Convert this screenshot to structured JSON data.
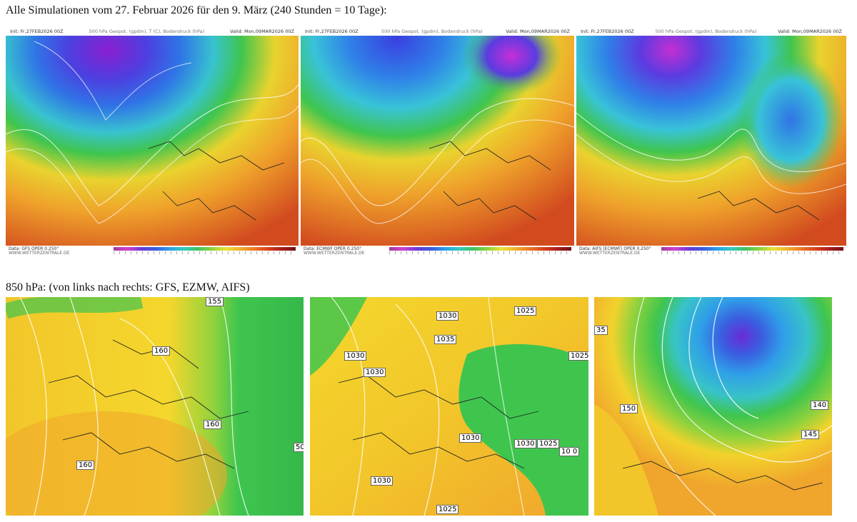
{
  "captions": {
    "top": "Alle Simulationen vom 27. Februar 2026 für den 9. März (240 Stunden = 10 Tage):",
    "bottom": "850 hPa: (von links nach rechts: GFS, EZMW, AIFS)"
  },
  "top_maps": [
    {
      "init": "Init: Fr,27FEB2026 00Z",
      "title": "500 hPa Geopot. (gpdm), T (C), Bodendruck (hPa)",
      "valid": "Valid: Mon,09MAR2026 00Z",
      "data_line": "Data: GFS  OPER 0.250°",
      "site": "WWW.WETTERZENTRALE.DE"
    },
    {
      "init": "Init: Fr,27FEB2026 00Z",
      "title": "500 hPa Geopot. (gpdm), Bodendruck (hPa)",
      "valid": "Valid: Mon,09MAR2026 00Z",
      "data_line": "Data: ECMWF  OPER 0.250°",
      "site": "WWW.WETTERZENTRALE.DE"
    },
    {
      "init": "Init: Fr,27FEB2026 00Z",
      "title": "500 hPa Geopot. (gpdm), Bodendruck (hPa)",
      "valid": "Valid: Mon,09MAR2026 00Z",
      "data_line": "Data: AIFS  (ECMWF)  OPER 0.250°",
      "site": "WWW.WETTERZENTRALE.DE"
    }
  ],
  "bottom_maps": [
    {
      "labels": [
        "155",
        "160",
        "160",
        "160",
        "50"
      ]
    },
    {
      "labels": [
        "1030",
        "1025",
        "1035",
        "1030",
        "1030",
        "1025",
        "1030",
        "1030",
        "1025",
        "10 0",
        "1030",
        "1025"
      ]
    },
    {
      "labels": [
        "35",
        "150",
        "140",
        "145"
      ]
    }
  ],
  "colors": {
    "purple": "#7b22c9",
    "blue": "#2f64e0",
    "cyan": "#39c3d8",
    "green": "#3dc44a",
    "yellow": "#f2e22a",
    "orange": "#f2a02c",
    "red": "#d9541f"
  }
}
